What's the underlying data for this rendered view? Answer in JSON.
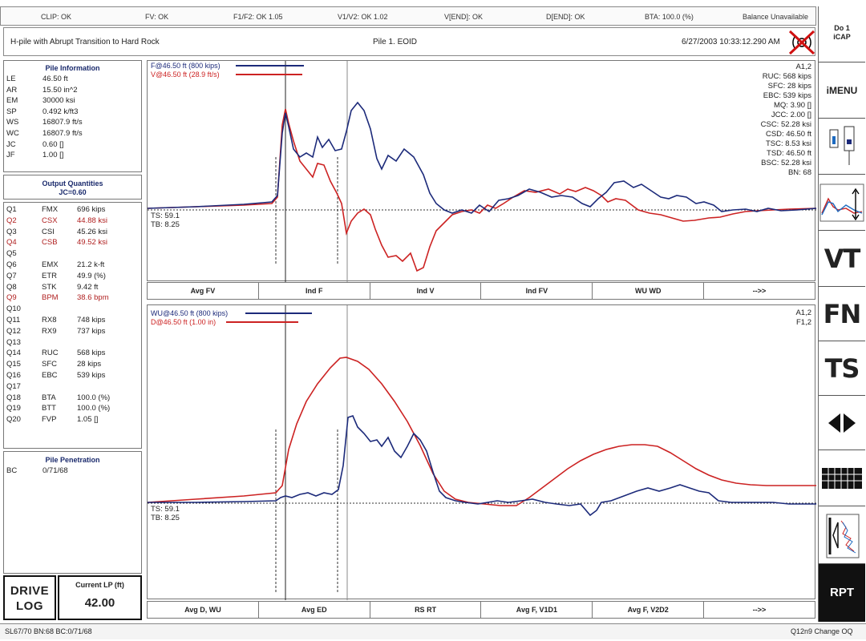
{
  "status": {
    "clip": "CLIP: OK",
    "fv": "FV: OK",
    "f1f2": "F1/F2: OK 1.05",
    "v1v2": "V1/V2: OK 1.02",
    "vend": "V[END]: OK",
    "dend": "D[END]: OK",
    "bta": "BTA: 100.0 (%)",
    "balance": "Balance Unavailable"
  },
  "title": {
    "project": "H-pile with Abrupt Transition to Hard Rock",
    "pile": "Pile 1. EOID",
    "datetime": "6/27/2003 10:33:12.290 AM"
  },
  "pile_info": {
    "title": "Pile Information",
    "rows": [
      {
        "k": "LE",
        "v": "46.50 ft"
      },
      {
        "k": "AR",
        "v": "15.50 in^2"
      },
      {
        "k": "EM",
        "v": "30000 ksi"
      },
      {
        "k": "SP",
        "v": "0.492 k/ft3"
      },
      {
        "k": "WS",
        "v": "16807.9 ft/s"
      },
      {
        "k": "WC",
        "v": "16807.9 ft/s"
      },
      {
        "k": "JC",
        "v": "0.60 []"
      },
      {
        "k": "JF",
        "v": "1.00 []"
      }
    ]
  },
  "output_quantities": {
    "title": "Output Quantities",
    "subtitle": "JC=0.60",
    "rows": [
      {
        "q": "Q1",
        "k": "FMX",
        "v": "696 kips"
      },
      {
        "q": "Q2",
        "k": "CSX",
        "v": "44.88 ksi"
      },
      {
        "q": "Q3",
        "k": "CSI",
        "v": "45.26 ksi"
      },
      {
        "q": "Q4",
        "k": "CSB",
        "v": "49.52 ksi"
      },
      {
        "q": "Q5",
        "k": "",
        "v": ""
      },
      {
        "q": "Q6",
        "k": "EMX",
        "v": "21.2 k-ft"
      },
      {
        "q": "Q7",
        "k": "ETR",
        "v": "49.9 (%)"
      },
      {
        "q": "Q8",
        "k": "STK",
        "v": "9.42 ft"
      },
      {
        "q": "Q9",
        "k": "BPM",
        "v": "38.6 bpm"
      },
      {
        "q": "Q10",
        "k": "",
        "v": ""
      },
      {
        "q": "Q11",
        "k": "RX8",
        "v": "748 kips"
      },
      {
        "q": "Q12",
        "k": "RX9",
        "v": "737 kips"
      },
      {
        "q": "Q13",
        "k": "",
        "v": ""
      },
      {
        "q": "Q14",
        "k": "RUC",
        "v": "568 kips"
      },
      {
        "q": "Q15",
        "k": "SFC",
        "v": "28 kips"
      },
      {
        "q": "Q16",
        "k": "EBC",
        "v": "539 kips"
      },
      {
        "q": "Q17",
        "k": "",
        "v": ""
      },
      {
        "q": "Q18",
        "k": "BTA",
        "v": "100.0 (%)"
      },
      {
        "q": "Q19",
        "k": "BTT",
        "v": "100.0 (%)"
      },
      {
        "q": "Q20",
        "k": "FVP",
        "v": "1.05 []"
      }
    ],
    "highlight_color": "#b02020"
  },
  "penetration": {
    "title": "Pile Penetration",
    "rows": [
      {
        "k": "BC",
        "v": "0/71/68"
      }
    ]
  },
  "drive_log": {
    "line1": "DRIVE",
    "line2": "LOG"
  },
  "current_lp": {
    "label": "Current LP (ft)",
    "value": "42.00"
  },
  "plot_top": {
    "legend_f": "F@46.50 ft (800 kips)",
    "legend_v": "V@46.50 ft (28.9 ft/s)",
    "right_labels": [
      "A1,2",
      "RUC: 568 kips",
      "SFC: 28 kips",
      "EBC: 539 kips",
      "MQ: 3.90 []",
      "JCC: 2.00 []",
      "CSC: 52.28 ksi",
      "CSD: 46.50 ft",
      "TSC: 8.53 ksi",
      "TSD: 46.50 ft",
      "BSC: 52.28 ksi",
      "BN: 68"
    ],
    "ts": "TS: 59.1",
    "tb": "TB: 8.25",
    "buttons": [
      "Avg FV",
      "Ind F",
      "Ind V",
      "Ind FV",
      "WU WD",
      "-->>"
    ]
  },
  "plot_bottom": {
    "legend_wu": "WU@46.50 ft (800 kips)",
    "legend_d": "D@46.50 ft (1.00 in)",
    "right_labels": [
      "A1,2",
      "F1,2"
    ],
    "ts": "TS: 59.1",
    "tb": "TB: 8.25",
    "buttons": [
      "Avg D, WU",
      "Avg ED",
      "RS RT",
      "Avg F, V1D1",
      "Avg F, V2D2",
      "-->>"
    ]
  },
  "toolbar": {
    "do_icap_1": "Do 1",
    "do_icap_2": "iCAP",
    "imenu": "iMENU",
    "vt": "VT",
    "fn": "FN",
    "ts": "TS",
    "rpt": "RPT"
  },
  "bottom": {
    "left": "SL67/70 BN:68 BC:0/71/68",
    "right": "Q12n9 Change OQ"
  },
  "colors": {
    "force": "#1c2a7a",
    "velocity": "#cc2222"
  }
}
